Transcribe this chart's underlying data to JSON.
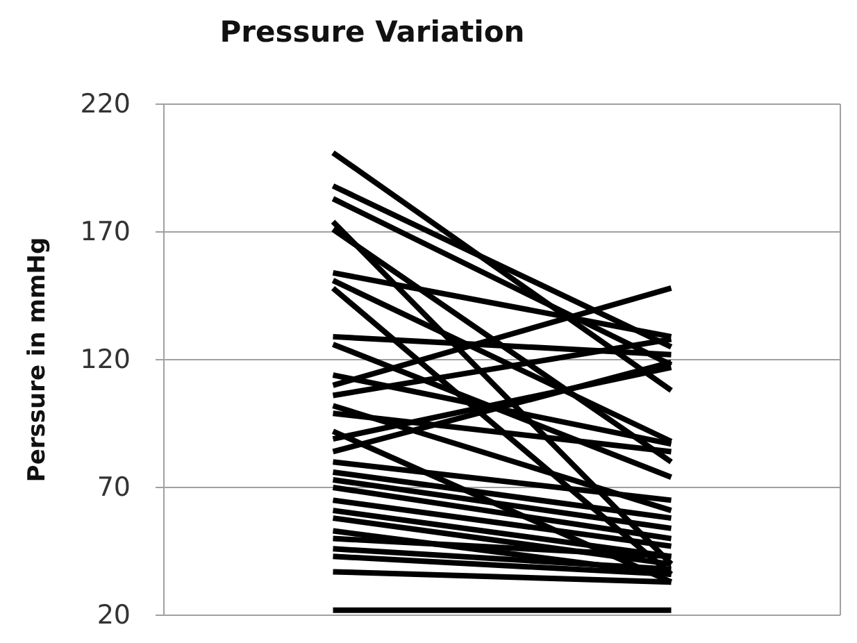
{
  "chart_data": {
    "type": "line",
    "title": "Pressure Variation",
    "ylabel": "Perssure in mmHg",
    "categories": [
      null,
      null
    ],
    "ylim": [
      20,
      220
    ],
    "yticks": [
      20,
      70,
      120,
      170,
      220
    ],
    "grid": "y",
    "marker": "none",
    "line_style": "solid",
    "series": [
      {
        "color": "#000000",
        "values": [
          201,
          108
        ]
      },
      {
        "color": "#000000",
        "values": [
          188,
          125
        ]
      },
      {
        "color": "#000000",
        "values": [
          183,
          118
        ]
      },
      {
        "color": "#000000",
        "values": [
          174,
          40
        ]
      },
      {
        "color": "#000000",
        "values": [
          171,
          80
        ]
      },
      {
        "color": "#000000",
        "values": [
          154,
          129
        ]
      },
      {
        "color": "#000000",
        "values": [
          151,
          88
        ]
      },
      {
        "color": "#000000",
        "values": [
          148,
          36
        ]
      },
      {
        "color": "#000000",
        "values": [
          129,
          122
        ]
      },
      {
        "color": "#000000",
        "values": [
          126,
          74
        ]
      },
      {
        "color": "#000000",
        "values": [
          114,
          87
        ]
      },
      {
        "color": "#000000",
        "values": [
          110,
          148
        ]
      },
      {
        "color": "#000000",
        "values": [
          106,
          128
        ]
      },
      {
        "color": "#000000",
        "values": [
          102,
          61
        ]
      },
      {
        "color": "#000000",
        "values": [
          99,
          84
        ]
      },
      {
        "color": "#000000",
        "values": [
          92,
          33
        ]
      },
      {
        "color": "#000000",
        "values": [
          89,
          117
        ]
      },
      {
        "color": "#000000",
        "values": [
          84,
          119
        ]
      },
      {
        "color": "#000000",
        "values": [
          80,
          65
        ]
      },
      {
        "color": "#000000",
        "values": [
          76,
          58
        ]
      },
      {
        "color": "#000000",
        "values": [
          73,
          54
        ]
      },
      {
        "color": "#000000",
        "values": [
          70,
          50
        ]
      },
      {
        "color": "#000000",
        "values": [
          65,
          47
        ]
      },
      {
        "color": "#000000",
        "values": [
          61,
          43
        ]
      },
      {
        "color": "#000000",
        "values": [
          58,
          40
        ]
      },
      {
        "color": "#000000",
        "values": [
          53,
          36
        ]
      },
      {
        "color": "#000000",
        "values": [
          50,
          43
        ]
      },
      {
        "color": "#000000",
        "values": [
          46,
          38
        ]
      },
      {
        "color": "#000000",
        "values": [
          43,
          36
        ]
      },
      {
        "color": "#000000",
        "values": [
          37,
          33
        ]
      },
      {
        "color": "#000000",
        "values": [
          22,
          22
        ]
      }
    ]
  }
}
